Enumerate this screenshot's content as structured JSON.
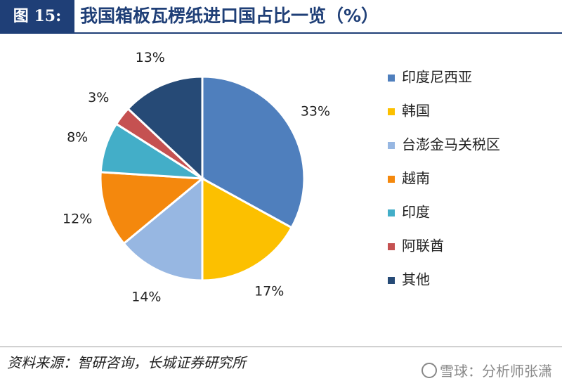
{
  "header": {
    "figure_label": "图 15:",
    "title": "我国箱板瓦楞纸进口国占比一览（%）"
  },
  "footer": {
    "source": "资料来源：智研咨询，长城证券研究所",
    "watermark": "雪球：分析师张潇"
  },
  "chart_data": {
    "type": "pie",
    "slices": [
      {
        "name": "印度尼西亚",
        "value": 33,
        "label": "33%",
        "color": "#4f7fbd"
      },
      {
        "name": "韩国",
        "value": 17,
        "label": "17%",
        "color": "#fcc000"
      },
      {
        "name": "台澎金马关税区",
        "value": 14,
        "label": "14%",
        "color": "#97b7e2"
      },
      {
        "name": "越南",
        "value": 12,
        "label": "12%",
        "color": "#f4880d"
      },
      {
        "name": "印度",
        "value": 8,
        "label": "8%",
        "color": "#43aec8"
      },
      {
        "name": "阿联酋",
        "value": 3,
        "label": "3%",
        "color": "#c55151"
      },
      {
        "name": "其他",
        "value": 13,
        "label": "13%",
        "color": "#264a76"
      }
    ],
    "legend_position": "right"
  }
}
